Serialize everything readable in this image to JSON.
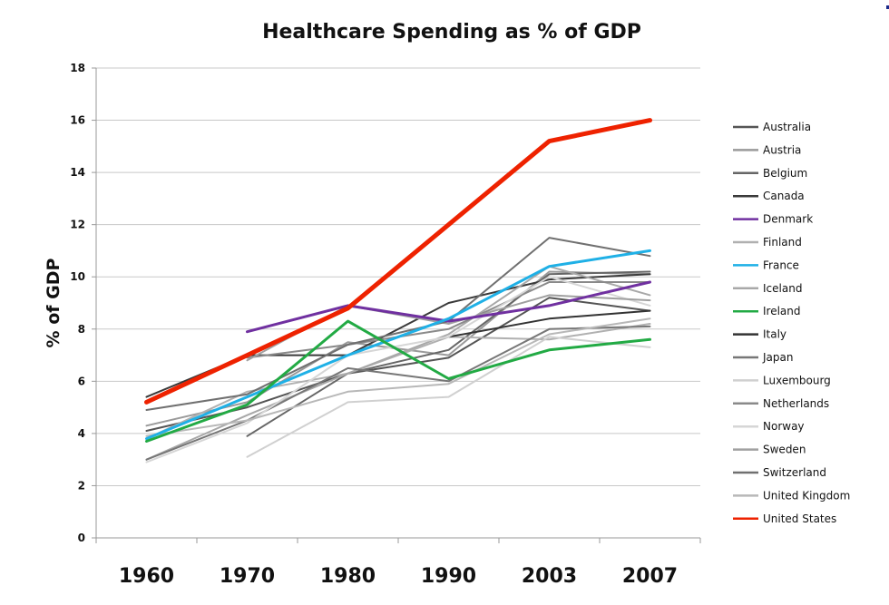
{
  "chart_data": {
    "type": "line",
    "title": "Healthcare Spending as % of GDP",
    "xlabel": "",
    "ylabel": "% of GDP",
    "ylim": [
      0,
      18
    ],
    "yticks": [
      "0",
      "2",
      "4",
      "6",
      "8",
      "10",
      "12",
      "14",
      "16",
      "18"
    ],
    "categories": [
      "1960",
      "1970",
      "1980",
      "1990",
      "2003",
      "2007"
    ],
    "grid": true,
    "legend_position": "right",
    "series": [
      {
        "name": "Australia",
        "color": "#555555",
        "values": [
          4.1,
          5.0,
          6.3,
          6.9,
          9.2,
          8.7
        ]
      },
      {
        "name": "Austria",
        "color": "#9a9a9a",
        "values": [
          4.3,
          5.2,
          7.5,
          7.0,
          10.2,
          10.1
        ]
      },
      {
        "name": "Belgium",
        "color": "#666666",
        "values": [
          null,
          3.9,
          6.3,
          7.2,
          10.1,
          10.2
        ]
      },
      {
        "name": "Canada",
        "color": "#3a3a3a",
        "values": [
          5.4,
          7.0,
          7.0,
          9.0,
          9.9,
          10.1
        ]
      },
      {
        "name": "Denmark",
        "color": "#7030a0",
        "values": [
          null,
          7.9,
          8.9,
          8.3,
          8.9,
          9.8
        ]
      },
      {
        "name": "Finland",
        "color": "#b0b0b0",
        "values": [
          3.8,
          5.6,
          6.3,
          7.7,
          7.6,
          8.2
        ]
      },
      {
        "name": "France",
        "color": "#1fb0e6",
        "values": [
          3.8,
          5.4,
          7.0,
          8.4,
          10.4,
          11.0
        ]
      },
      {
        "name": "Iceland",
        "color": "#a8a8a8",
        "values": [
          3.0,
          4.7,
          6.3,
          7.8,
          10.4,
          9.3
        ]
      },
      {
        "name": "Ireland",
        "color": "#22aa44",
        "values": [
          3.7,
          5.1,
          8.3,
          6.1,
          7.2,
          7.6
        ]
      },
      {
        "name": "Italy",
        "color": "#333333",
        "values": [
          null,
          null,
          null,
          7.7,
          8.4,
          8.7
        ]
      },
      {
        "name": "Japan",
        "color": "#777777",
        "values": [
          3.0,
          4.5,
          6.5,
          6.0,
          8.0,
          8.1
        ]
      },
      {
        "name": "Luxembourg",
        "color": "#d0d0d0",
        "values": [
          null,
          3.1,
          5.2,
          5.4,
          7.7,
          7.3
        ]
      },
      {
        "name": "Netherlands",
        "color": "#8a8a8a",
        "values": [
          null,
          6.9,
          7.4,
          8.0,
          9.8,
          9.8
        ]
      },
      {
        "name": "Norway",
        "color": "#d6d6d6",
        "values": [
          2.9,
          4.4,
          7.0,
          7.7,
          10.0,
          8.9
        ]
      },
      {
        "name": "Sweden",
        "color": "#a0a0a0",
        "values": [
          null,
          6.8,
          8.9,
          8.2,
          9.3,
          9.1
        ]
      },
      {
        "name": "Switzerland",
        "color": "#707070",
        "values": [
          4.9,
          5.5,
          7.4,
          8.3,
          11.5,
          10.8
        ]
      },
      {
        "name": "United Kingdom",
        "color": "#b8b8b8",
        "values": [
          3.9,
          4.5,
          5.6,
          5.9,
          7.8,
          8.4
        ]
      },
      {
        "name": "United States",
        "color": "#ee2200",
        "values": [
          5.2,
          7.0,
          8.8,
          12.0,
          15.2,
          16.0
        ]
      }
    ]
  }
}
